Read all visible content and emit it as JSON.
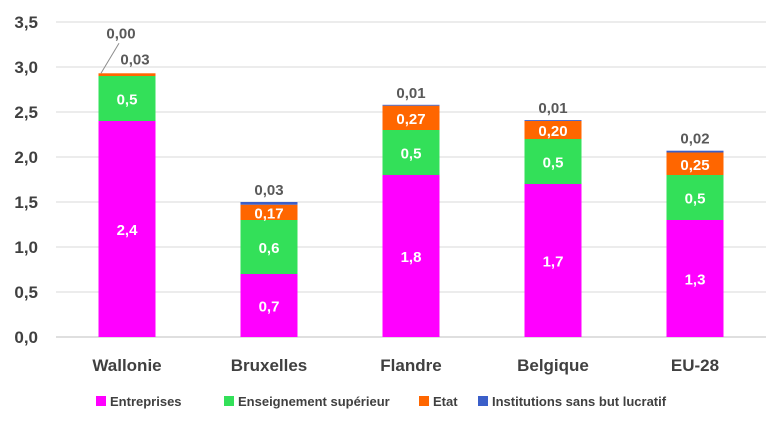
{
  "chart_data": {
    "type": "bar",
    "stacked": true,
    "categories": [
      "Wallonie",
      "Bruxelles",
      "Flandre",
      "Belgique",
      "EU-28"
    ],
    "series": [
      {
        "name": "Entreprises",
        "color": "#ff00ff",
        "values": [
          2.4,
          0.7,
          1.8,
          1.7,
          1.3
        ],
        "labels": [
          "2,4",
          "0,7",
          "1,8",
          "1,7",
          "1,3"
        ]
      },
      {
        "name": "Enseignement supérieur",
        "color": "#33e059",
        "values": [
          0.5,
          0.6,
          0.5,
          0.5,
          0.5
        ],
        "labels": [
          "0,5",
          "0,6",
          "0,5",
          "0,5",
          "0,5"
        ]
      },
      {
        "name": "Etat",
        "color": "#ff6600",
        "values": [
          0.03,
          0.17,
          0.27,
          0.2,
          0.25
        ],
        "labels": [
          "0,03",
          "0,17",
          "0,27",
          "0,20",
          "0,25"
        ]
      },
      {
        "name": "Institutions sans but lucratif",
        "color": "#3b5fc9",
        "values": [
          0.0,
          0.03,
          0.01,
          0.01,
          0.02
        ],
        "labels": [
          "0,00",
          "0,03",
          "0,01",
          "0,01",
          "0,02"
        ]
      }
    ],
    "ylim": [
      0,
      3.5
    ],
    "yticks": [
      0,
      0.5,
      1.0,
      1.5,
      2.0,
      2.5,
      3.0,
      3.5
    ],
    "ytick_labels": [
      "0,0",
      "0,5",
      "1,0",
      "1,5",
      "2,0",
      "2,5",
      "3,0",
      "3,5"
    ],
    "grid": true,
    "legend": "bottom",
    "title": "",
    "xlabel": "",
    "ylabel": ""
  }
}
